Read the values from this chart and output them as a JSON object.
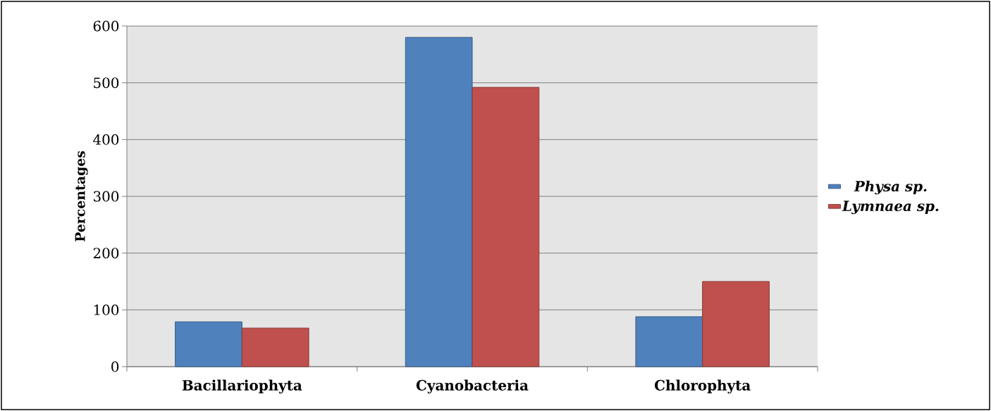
{
  "chart_data": {
    "type": "bar",
    "ylabel": "Percentages",
    "categories": [
      "Bacillariophyta",
      "Cyanobacteria",
      "Chlorophyta"
    ],
    "series": [
      {
        "name": "Physa  sp.",
        "color": "#4f81bd",
        "values": [
          79,
          580,
          88
        ]
      },
      {
        "name": "Lymnaea sp.",
        "color": "#c0504d",
        "values": [
          68,
          492,
          150
        ]
      }
    ],
    "ylim": [
      0,
      600
    ],
    "yticks": [
      0,
      100,
      200,
      300,
      400,
      500,
      600
    ],
    "grid": "y",
    "legend": "right"
  }
}
